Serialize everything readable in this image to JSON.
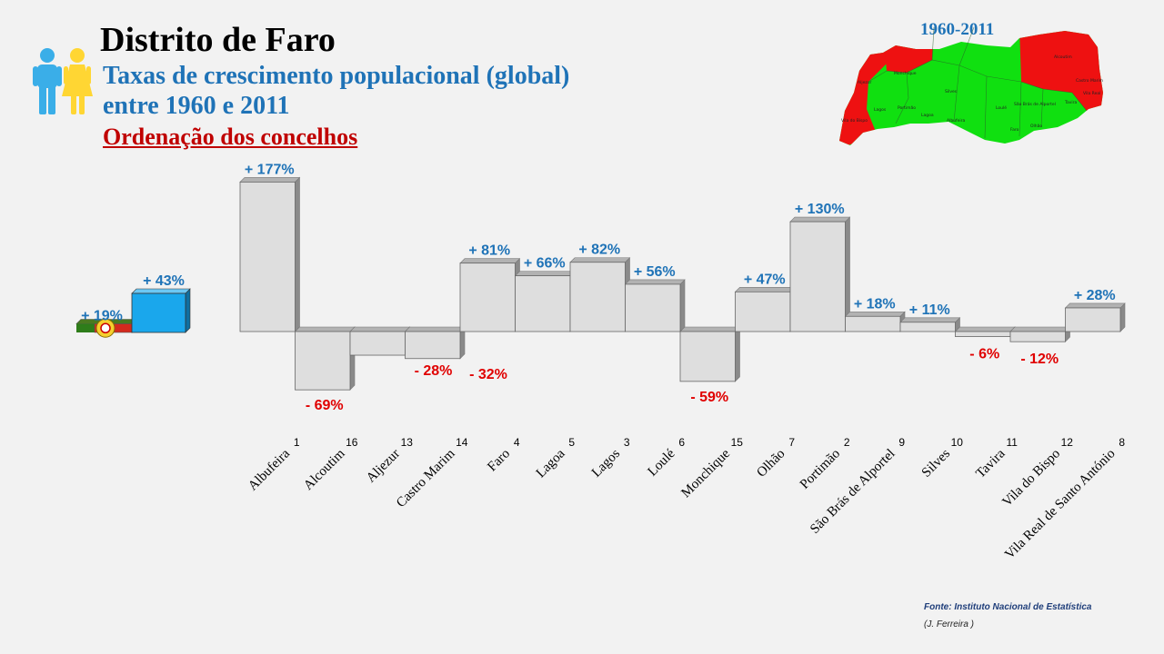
{
  "header": {
    "title": "Distrito de Faro",
    "subtitle_line1": "Taxas de crescimento populacional (global)",
    "subtitle_line2": "entre 1960 e 2011",
    "subtitle_line3": "Ordenação dos concelhos"
  },
  "map": {
    "period": "1960-2011",
    "labels": [
      "Aljezur",
      "Monchique",
      "Alcoutim",
      "Castro Marim",
      "Silves",
      "Loulé",
      "São Brás de Alportel",
      "Lagos",
      "Portimão",
      "Lagoa",
      "Albufeira",
      "Faro",
      "Olhão",
      "Tavira",
      "Vila do Bispo",
      "Vila Real"
    ],
    "colors": {
      "growth": "#10e010",
      "decline": "#ee1111"
    }
  },
  "footer": {
    "source": "Fonte: Instituto Nacional de Estatística",
    "author": "(J. Ferreira )"
  },
  "chart_data": {
    "type": "bar",
    "title": "Taxas de crescimento populacional (global) entre 1960 e 2011",
    "categories": [
      "Albufeira",
      "Alcoutim",
      "Aljezur",
      "Castro Marim",
      "Faro",
      "Lagoa",
      "Lagos",
      "Loulé",
      "Monchique",
      "Olhão",
      "Portimão",
      "São Brás de Alportel",
      "Silves",
      "Tavira",
      "Vila do Bispo",
      "Vila Real de Santo António"
    ],
    "ranks": [
      "1",
      "16",
      "13",
      "14",
      "4",
      "5",
      "3",
      "6",
      "15",
      "7",
      "2",
      "9",
      "10",
      "11",
      "12",
      "8"
    ],
    "values": [
      177,
      -69,
      -28,
      -32,
      81,
      66,
      82,
      56,
      -59,
      47,
      130,
      18,
      11,
      -6,
      -12,
      28
    ],
    "value_labels": [
      "+ 177%",
      "- 69%",
      "- 28%",
      "- 32%",
      "+ 81%",
      "+ 66%",
      "+ 82%",
      "+ 56%",
      "- 59%",
      "+ 47%",
      "+ 130%",
      "+ 18%",
      "+ 11%",
      "- 6%",
      "- 12%",
      "+ 28%"
    ],
    "reference": {
      "portugal": {
        "value": 19,
        "label": "+ 19%"
      },
      "distrito": {
        "value": 43,
        "label": "+ 43%"
      }
    },
    "colors": {
      "bar": "#dedede",
      "district_bar": "#1aa7ec",
      "positive_label": "#1f73b7",
      "negative_label": "#e00000"
    },
    "grid": false,
    "legend": "none"
  }
}
